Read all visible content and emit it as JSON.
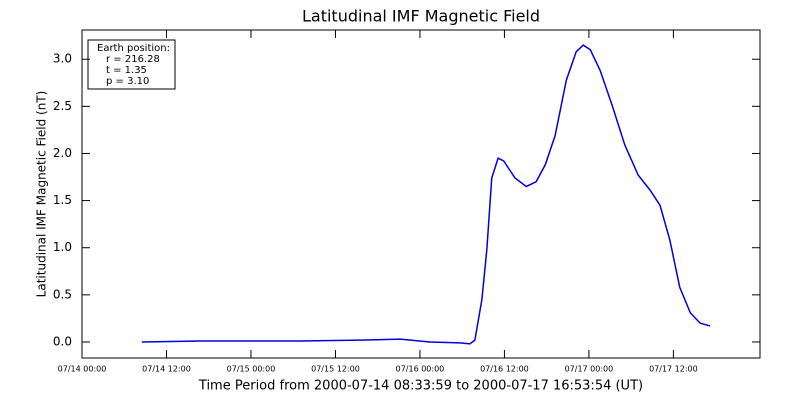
{
  "chart_data": {
    "type": "line",
    "title": "Latitudinal IMF Magnetic Field",
    "x_label": "Time Period from 2000-07-14 08:33:59 to 2000-07-17 16:53:54 (UT)",
    "y_label": "Latitudinal IMF Magnetic Field (nT)",
    "annotations": [
      "Earth position:",
      "r = 216.28",
      "t = 1.35",
      "p = 3.10"
    ],
    "x": [
      8.5,
      16.8,
      31,
      39.5,
      45.2,
      49.4,
      53.7,
      55.1,
      55.8,
      56.8,
      57.5,
      58.2,
      59.1,
      59.9,
      61.5,
      63.1,
      64.5,
      65.8,
      67.2,
      68.8,
      70.2,
      71.2,
      72.2,
      73.6,
      75.3,
      77.1,
      79.0,
      80.7,
      82.1,
      83.5,
      84.9,
      86.4,
      87.8,
      89.2
    ],
    "series": [
      {
        "color": "#0000dd",
        "values": [
          0.0,
          0.01,
          0.01,
          0.02,
          0.03,
          0.0,
          -0.01,
          -0.02,
          0.02,
          0.45,
          0.98,
          1.74,
          1.95,
          1.92,
          1.74,
          1.65,
          1.7,
          1.88,
          2.19,
          2.78,
          3.08,
          3.15,
          3.1,
          2.88,
          2.51,
          2.09,
          1.77,
          1.61,
          1.45,
          1.08,
          0.58,
          0.31,
          0.2,
          0.17
        ]
      }
    ],
    "xlim": [
      0,
      96.3
    ],
    "xticks": [
      {
        "value": 0,
        "label": "07/14 00:00"
      },
      {
        "value": 12,
        "label": "07/14 12:00"
      },
      {
        "value": 24,
        "label": "07/15 00:00"
      },
      {
        "value": 36,
        "label": "07/15 12:00"
      },
      {
        "value": 48,
        "label": "07/16 00:00"
      },
      {
        "value": 60,
        "label": "07/16 12:00"
      },
      {
        "value": 72,
        "label": "07/17 00:00"
      },
      {
        "value": 84,
        "label": "07/17 12:00"
      }
    ],
    "ylim": [
      -0.17,
      3.31
    ],
    "yticks": [
      {
        "value": 0,
        "label": "0.0"
      },
      {
        "value": 0.5,
        "label": "0.5"
      },
      {
        "value": 1,
        "label": "1.0"
      },
      {
        "value": 1.5,
        "label": "1.5"
      },
      {
        "value": 2,
        "label": "2.0"
      },
      {
        "value": 2.5,
        "label": "2.5"
      },
      {
        "value": 3,
        "label": "3.0"
      }
    ]
  }
}
